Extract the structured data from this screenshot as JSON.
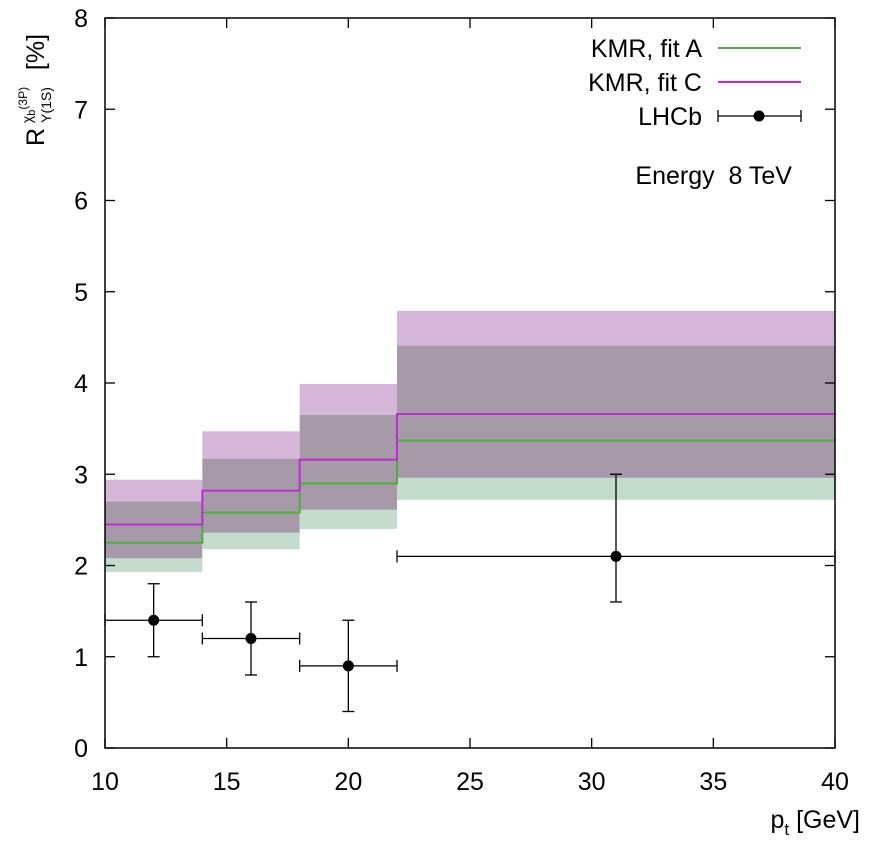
{
  "chart_data": {
    "type": "line",
    "title": "",
    "xlabel": "p",
    "xlabel_sub": "t",
    "xlabel_unit": " [GeV]",
    "ylabel": {
      "main": "R",
      "sup_base": "χ",
      "sup_sub": "b",
      "sup_paren": "(3P)",
      "sub_base": "Υ",
      "sub_paren": "(1S)",
      "unit": "[%]"
    },
    "xlim": [
      10,
      40
    ],
    "ylim": [
      0,
      8
    ],
    "xticks": [
      10,
      15,
      20,
      25,
      30,
      35,
      40
    ],
    "yticks": [
      0,
      1,
      2,
      3,
      4,
      5,
      6,
      7,
      8
    ],
    "legend_position": "top-right",
    "annotation": "Energy  8 TeV",
    "bin_edges": [
      10,
      14,
      18,
      22,
      40
    ],
    "series": [
      {
        "name": "KMR, fit A",
        "kind": "step",
        "color": "#4caf3c",
        "band_color": "#c3dccc",
        "values": [
          2.25,
          2.58,
          2.9,
          3.37
        ],
        "band_low": [
          1.93,
          2.18,
          2.4,
          2.72
        ],
        "band_high": [
          2.7,
          3.17,
          3.65,
          4.41
        ]
      },
      {
        "name": "KMR, fit C",
        "kind": "step",
        "color": "#c02ad4",
        "band_color": "#d5b6d8",
        "values": [
          2.45,
          2.82,
          3.16,
          3.66
        ],
        "band_low": [
          2.08,
          2.36,
          2.61,
          2.96
        ],
        "band_high": [
          2.94,
          3.47,
          3.99,
          4.79
        ]
      },
      {
        "name": "LHCb",
        "kind": "points",
        "color": "#000000",
        "points": [
          {
            "x": 12,
            "xlo": 10,
            "xhi": 14,
            "y": 1.4,
            "ylo": 1.0,
            "yhi": 1.8
          },
          {
            "x": 16,
            "xlo": 14,
            "xhi": 18,
            "y": 1.2,
            "ylo": 0.8,
            "yhi": 1.6
          },
          {
            "x": 20,
            "xlo": 18,
            "xhi": 22,
            "y": 0.9,
            "ylo": 0.4,
            "yhi": 1.4
          },
          {
            "x": 31,
            "xlo": 22,
            "xhi": 40,
            "y": 2.1,
            "ylo": 1.6,
            "yhi": 3.0
          }
        ]
      }
    ],
    "overlap_color": "#a69aa9"
  }
}
